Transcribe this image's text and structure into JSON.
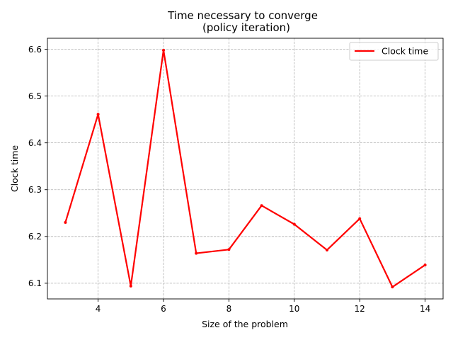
{
  "chart_data": {
    "type": "line",
    "title": "Time necessary to converge",
    "subtitle": "(policy iteration)",
    "xlabel": "Size of the problem",
    "ylabel": "Clock time",
    "xlim": [
      2.45,
      14.55
    ],
    "ylim": [
      6.0665,
      6.6235
    ],
    "xticks": [
      4,
      6,
      8,
      10,
      12,
      14
    ],
    "yticks": [
      6.1,
      6.2,
      6.3,
      6.4,
      6.5,
      6.6
    ],
    "xtick_labels": [
      "4",
      "6",
      "8",
      "10",
      "12",
      "14"
    ],
    "ytick_labels": [
      "6.1",
      "6.2",
      "6.3",
      "6.4",
      "6.5",
      "6.6"
    ],
    "grid": true,
    "legend_position": "top-right",
    "series": [
      {
        "name": "Clock time",
        "color": "#ff0000",
        "x": [
          3,
          4,
          5,
          6,
          7,
          8,
          9,
          10,
          11,
          12,
          13,
          14
        ],
        "y": [
          6.23,
          6.461,
          6.094,
          6.598,
          6.164,
          6.172,
          6.266,
          6.226,
          6.171,
          6.238,
          6.092,
          6.139
        ]
      }
    ]
  }
}
